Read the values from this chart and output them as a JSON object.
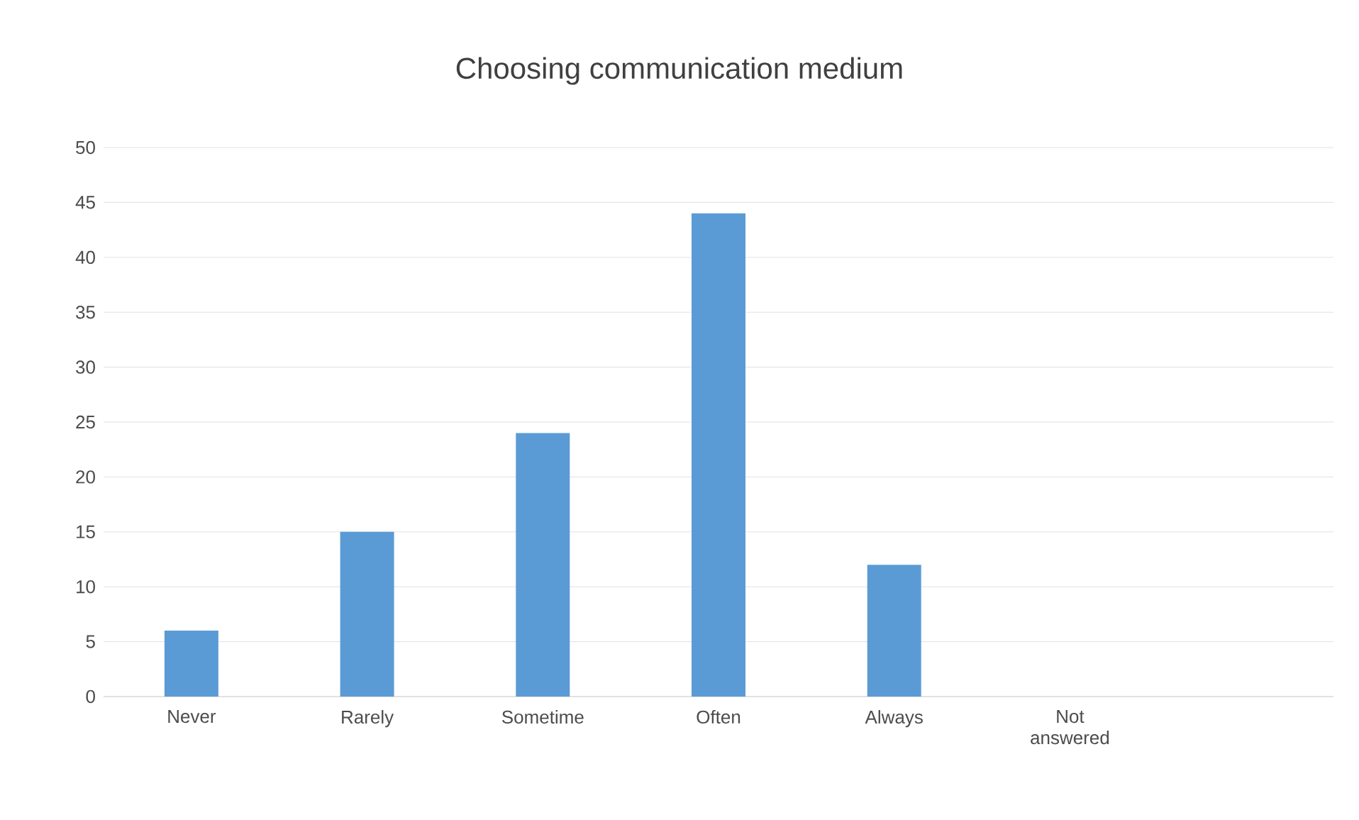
{
  "chart_data": {
    "type": "bar",
    "title": "Choosing communication medium",
    "categories": [
      "Never",
      "Rarely",
      "Sometime",
      "Often",
      "Always",
      "Not answered",
      null
    ],
    "values": [
      6,
      15,
      24,
      44,
      12,
      0,
      0
    ],
    "color": "#5b9bd5",
    "ylim": [
      0,
      50
    ],
    "yticks": [
      0,
      5,
      10,
      15,
      20,
      25,
      30,
      35,
      40,
      45,
      50
    ],
    "grid": "y"
  }
}
